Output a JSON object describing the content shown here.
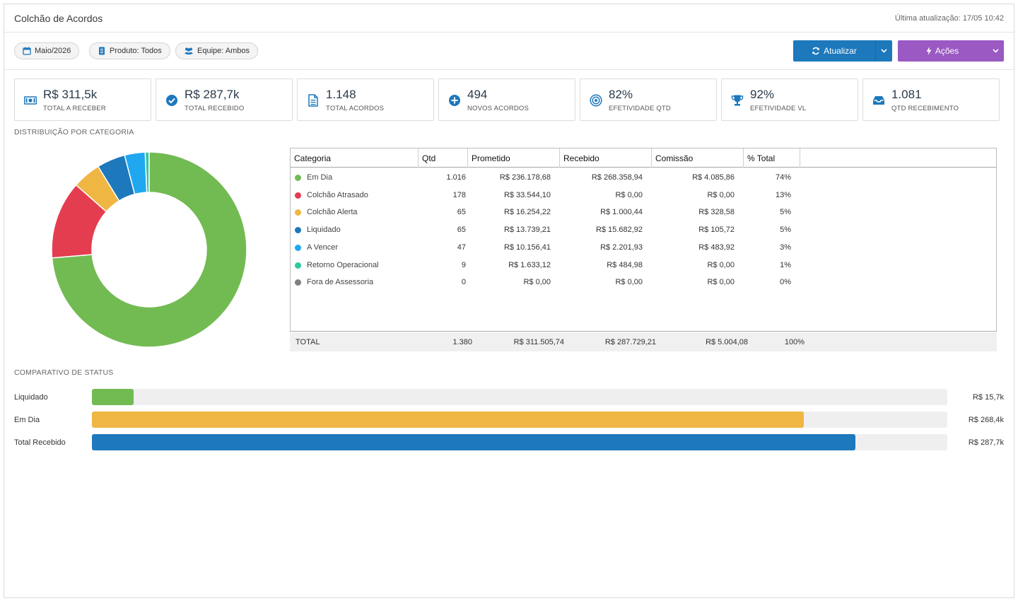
{
  "header": {
    "title": "Colchão de Acordos",
    "updated": "Última atualização: 17/05 10:42"
  },
  "filters": [
    {
      "label": "Maio/2026",
      "icon": "calendar-icon"
    },
    {
      "label": "Produto: Todos",
      "icon": "document-icon"
    },
    {
      "label": "Equipe: Ambos",
      "icon": "users-icon"
    }
  ],
  "buttons": {
    "atualizar": "Atualizar",
    "acoes": "Ações"
  },
  "colors": {
    "primary": "#1d78bc",
    "purple": "#9b59c3",
    "green": "#72bb53",
    "red": "#e43d50",
    "orange": "#f0b643",
    "blue": "#1d78bc",
    "lightblue": "#1fa8f0",
    "teal": "#2fc8a0",
    "gray": "#808080"
  },
  "kpis": [
    {
      "value": "R$ 311,5k",
      "label": "TOTAL A RECEBER",
      "icon": "money-icon"
    },
    {
      "value": "R$ 287,7k",
      "label": "TOTAL RECEBIDO",
      "icon": "check-circle-icon"
    },
    {
      "value": "1.148",
      "label": "TOTAL ACORDOS",
      "icon": "file-icon"
    },
    {
      "value": "494",
      "label": "NOVOS ACORDOS",
      "icon": "plus-circle-icon"
    },
    {
      "value": "82%",
      "label": "EFETIVIDADE QTD",
      "icon": "target-icon"
    },
    {
      "value": "92%",
      "label": "EFETIVIDADE VL",
      "icon": "trophy-icon"
    },
    {
      "value": "1.081",
      "label": "QTD RECEBIMENTO",
      "icon": "inbox-icon"
    }
  ],
  "sections": {
    "distribution": "DISTRIBUIÇÃO POR CATEGORIA",
    "comparison": "COMPARATIVO DE STATUS"
  },
  "table": {
    "headers": [
      "Categoria",
      "Qtd",
      "Prometido",
      "Recebido",
      "Comissão",
      "% Total"
    ],
    "rows": [
      {
        "categoria": "Em Dia",
        "qtd": "1.016",
        "prometido": "R$ 236.178,68",
        "recebido": "R$ 268.358,94",
        "comissao": "R$ 4.085,86",
        "pct": "74%",
        "color": "#72bb53"
      },
      {
        "categoria": "Colchão Atrasado",
        "qtd": "178",
        "prometido": "R$ 33.544,10",
        "recebido": "R$ 0,00",
        "comissao": "R$ 0,00",
        "pct": "13%",
        "color": "#e43d50"
      },
      {
        "categoria": "Colchão Alerta",
        "qtd": "65",
        "prometido": "R$ 16.254,22",
        "recebido": "R$ 1.000,44",
        "comissao": "R$ 328,58",
        "pct": "5%",
        "color": "#f0b643"
      },
      {
        "categoria": "Liquidado",
        "qtd": "65",
        "prometido": "R$ 13.739,21",
        "recebido": "R$ 15.682,92",
        "comissao": "R$ 105,72",
        "pct": "5%",
        "color": "#1d78bc"
      },
      {
        "categoria": "A Vencer",
        "qtd": "47",
        "prometido": "R$ 10.156,41",
        "recebido": "R$ 2.201,93",
        "comissao": "R$ 483,92",
        "pct": "3%",
        "color": "#1fa8f0"
      },
      {
        "categoria": "Retorno Operacional",
        "qtd": "9",
        "prometido": "R$ 1.633,12",
        "recebido": "R$ 484,98",
        "comissao": "R$ 0,00",
        "pct": "1%",
        "color": "#2fc8a0"
      },
      {
        "categoria": "Fora de Assessoria",
        "qtd": "0",
        "prometido": "R$ 0,00",
        "recebido": "R$ 0,00",
        "comissao": "R$ 0,00",
        "pct": "0%",
        "color": "#808080"
      }
    ],
    "total": {
      "label": "TOTAL",
      "qtd": "1.380",
      "prometido": "R$ 311.505,74",
      "recebido": "R$ 287.729,21",
      "comissao": "R$ 5.004,08",
      "pct": "100%"
    }
  },
  "chart_data": [
    {
      "type": "pie",
      "title": "",
      "categories": [
        "Em Dia",
        "Colchão Atrasado",
        "Colchão Alerta",
        "Liquidado",
        "A Vencer",
        "Retorno Operacional",
        "Fora de Assessoria"
      ],
      "values": [
        1016,
        178,
        65,
        65,
        47,
        9,
        0
      ],
      "colors": [
        "#72bb53",
        "#e43d50",
        "#f0b643",
        "#1d78bc",
        "#1fa8f0",
        "#2fc8a0",
        "#808080"
      ]
    },
    {
      "type": "bar",
      "title": "",
      "orientation": "horizontal",
      "categories": [
        "Liquidado",
        "Em Dia",
        "Total Recebido"
      ],
      "values": [
        15.7,
        268.4,
        287.7
      ],
      "value_labels": [
        "R$ 15,7k",
        "R$ 268,4k",
        "R$ 287,7k"
      ],
      "colors": [
        "#72bb53",
        "#f0b643",
        "#1d78bc"
      ],
      "xlim": [
        0,
        311.5
      ]
    }
  ]
}
